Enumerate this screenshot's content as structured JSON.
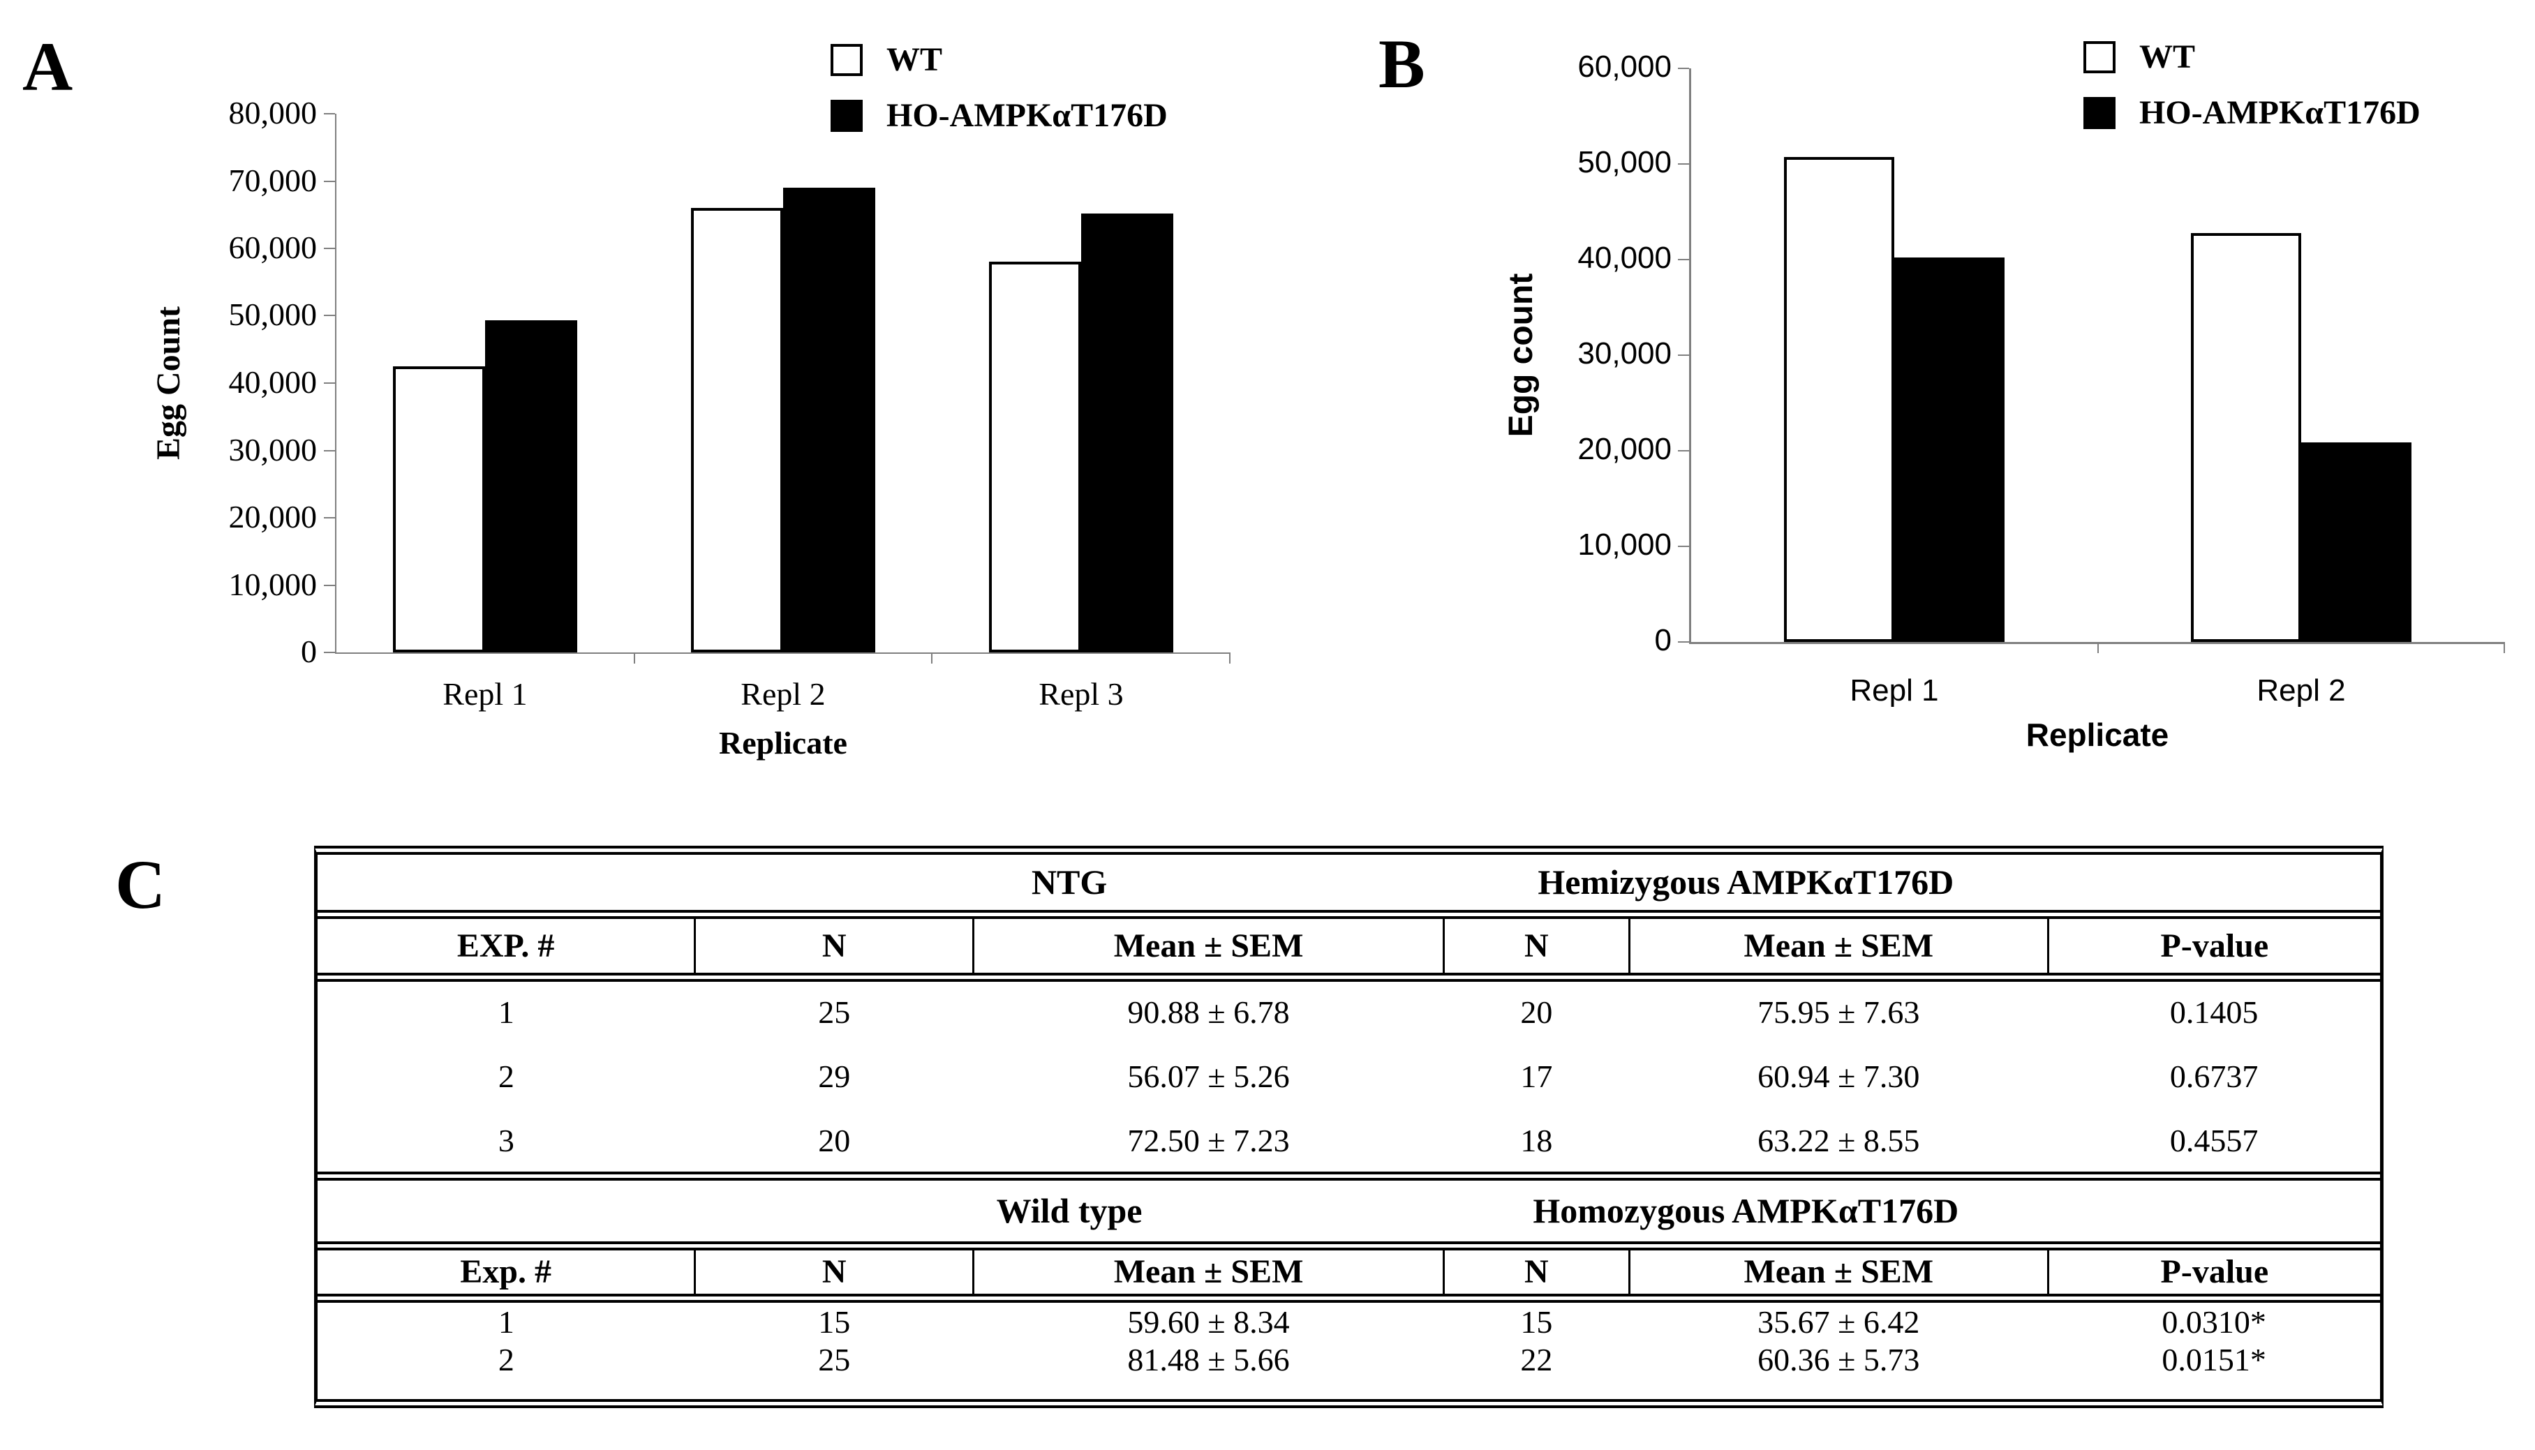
{
  "panels": {
    "a_label": "A",
    "b_label": "B",
    "c_label": "C"
  },
  "legend": {
    "wt_label": "WT",
    "mutant_label": "HO-AMPKαT176D"
  },
  "chart_data": [
    {
      "id": "panel-a",
      "type": "bar",
      "title": "",
      "categories": [
        "Repl 1",
        "Repl 2",
        "Repl 3"
      ],
      "series": [
        {
          "name": "WT",
          "fill": "#ffffff",
          "values": [
            42500,
            66000,
            58000
          ]
        },
        {
          "name": "HO-AMPKαT176D",
          "fill": "#000000",
          "values": [
            49300,
            69000,
            65200
          ]
        }
      ],
      "xlabel": "Replicate",
      "ylabel": "Egg Count",
      "ylim": [
        0,
        80000
      ],
      "ytick_step": 10000,
      "grid": false,
      "legend_position": "top-right"
    },
    {
      "id": "panel-b",
      "type": "bar",
      "title": "",
      "categories": [
        "Repl 1",
        "Repl 2"
      ],
      "series": [
        {
          "name": "WT",
          "fill": "#ffffff",
          "values": [
            50700,
            42800
          ]
        },
        {
          "name": "HO-AMPKαT176D",
          "fill": "#000000",
          "values": [
            40200,
            20900
          ]
        }
      ],
      "xlabel": "Replicate",
      "ylabel": "Egg count",
      "ylim": [
        0,
        60000
      ],
      "ytick_step": 10000,
      "grid": false,
      "legend_position": "top-right"
    }
  ],
  "table": {
    "sections": [
      {
        "group_headers": [
          "NTG",
          "Hemizygous AMPKαT176D"
        ],
        "columns": [
          "EXP. #",
          "N",
          "Mean ± SEM",
          "N",
          "Mean ± SEM",
          "P-value"
        ],
        "rows": [
          [
            "1",
            "25",
            "90.88 ± 6.78",
            "20",
            "75.95 ± 7.63",
            "0.1405"
          ],
          [
            "2",
            "29",
            "56.07 ± 5.26",
            "17",
            "60.94 ± 7.30",
            "0.6737"
          ],
          [
            "3",
            "20",
            "72.50 ± 7.23",
            "18",
            "63.22 ± 8.55",
            "0.4557"
          ]
        ]
      },
      {
        "group_headers": [
          "Wild type",
          "Homozygous AMPKαT176D"
        ],
        "columns": [
          "Exp. #",
          "N",
          "Mean ± SEM",
          "N",
          "Mean ± SEM",
          "P-value"
        ],
        "rows": [
          [
            "1",
            "15",
            "59.60 ± 8.34",
            "15",
            "35.67 ± 6.42",
            "0.0310*"
          ],
          [
            "2",
            "25",
            "81.48 ± 5.66",
            "22",
            "60.36 ± 5.73",
            "0.0151*"
          ]
        ]
      }
    ]
  },
  "colors": {
    "bar_wt": "#ffffff",
    "bar_mutant": "#000000",
    "axis": "#7f7f7f",
    "text": "#000000",
    "table_border": "#000000"
  }
}
